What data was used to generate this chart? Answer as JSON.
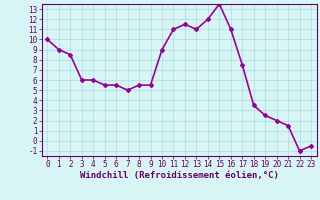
{
  "x": [
    0,
    1,
    2,
    3,
    4,
    5,
    6,
    7,
    8,
    9,
    10,
    11,
    12,
    13,
    14,
    15,
    16,
    17,
    18,
    19,
    20,
    21,
    22,
    23
  ],
  "y": [
    10,
    9,
    8.5,
    6,
    6,
    5.5,
    5.5,
    5,
    5.5,
    5.5,
    9,
    11,
    11.5,
    11,
    12,
    13.5,
    11,
    7.5,
    3.5,
    2.5,
    2,
    1.5,
    -1,
    -0.5
  ],
  "line_color": "#990099",
  "marker": "D",
  "marker_size": 2,
  "xlabel": "Windchill (Refroidissement éolien,°C)",
  "xlim": [
    -0.5,
    23.5
  ],
  "ylim": [
    -1.5,
    13.5
  ],
  "yticks": [
    -1,
    0,
    1,
    2,
    3,
    4,
    5,
    6,
    7,
    8,
    9,
    10,
    11,
    12,
    13
  ],
  "xticks": [
    0,
    1,
    2,
    3,
    4,
    5,
    6,
    7,
    8,
    9,
    10,
    11,
    12,
    13,
    14,
    15,
    16,
    17,
    18,
    19,
    20,
    21,
    22,
    23
  ],
  "bg_color": "#d8f5f5",
  "grid_color": "#aadddd",
  "line_width": 1.2,
  "font_color": "#660066",
  "tick_fontsize": 5.5,
  "xlabel_fontsize": 6.5
}
